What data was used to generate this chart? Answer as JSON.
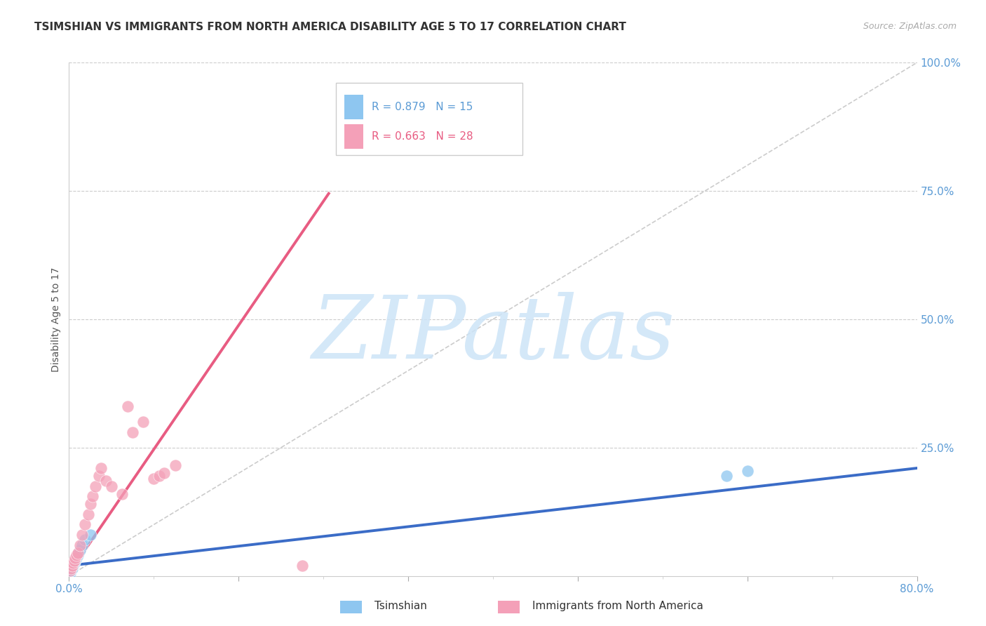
{
  "title": "TSIMSHIAN VS IMMIGRANTS FROM NORTH AMERICA DISABILITY AGE 5 TO 17 CORRELATION CHART",
  "source": "Source: ZipAtlas.com",
  "ylabel": "Disability Age 5 to 17",
  "xlim": [
    0.0,
    0.8
  ],
  "ylim": [
    0.0,
    1.0
  ],
  "blue_R": 0.879,
  "blue_N": 15,
  "pink_R": 0.663,
  "pink_N": 28,
  "tsimshian_color": "#8ec6f0",
  "immigrant_color": "#f4a0b8",
  "blue_line_color": "#3b6cc7",
  "pink_line_color": "#e85c82",
  "diag_color": "#cccccc",
  "grid_color": "#cccccc",
  "background_color": "#ffffff",
  "tick_color": "#5b9bd5",
  "tsimshian_x": [
    0.001,
    0.002,
    0.003,
    0.004,
    0.005,
    0.006,
    0.007,
    0.008,
    0.009,
    0.01,
    0.012,
    0.015,
    0.02,
    0.62,
    0.64
  ],
  "tsimshian_y": [
    0.005,
    0.01,
    0.015,
    0.02,
    0.025,
    0.03,
    0.035,
    0.04,
    0.045,
    0.05,
    0.06,
    0.07,
    0.08,
    0.195,
    0.205
  ],
  "immigrant_x": [
    0.001,
    0.002,
    0.003,
    0.004,
    0.005,
    0.006,
    0.007,
    0.008,
    0.01,
    0.012,
    0.015,
    0.018,
    0.02,
    0.022,
    0.025,
    0.028,
    0.03,
    0.035,
    0.04,
    0.05,
    0.055,
    0.06,
    0.07,
    0.08,
    0.085,
    0.09,
    0.1,
    0.22
  ],
  "immigrant_y": [
    0.01,
    0.015,
    0.02,
    0.025,
    0.03,
    0.035,
    0.04,
    0.045,
    0.06,
    0.08,
    0.1,
    0.12,
    0.14,
    0.155,
    0.175,
    0.195,
    0.21,
    0.185,
    0.175,
    0.16,
    0.33,
    0.28,
    0.3,
    0.19,
    0.195,
    0.2,
    0.215,
    0.02
  ],
  "blue_line_x": [
    0.0,
    0.8
  ],
  "blue_line_y": [
    0.02,
    0.21
  ],
  "pink_line_x": [
    0.0,
    0.245
  ],
  "pink_line_y": [
    0.005,
    0.745
  ],
  "diag_line_x": [
    0.0,
    0.8
  ],
  "diag_line_y": [
    0.0,
    1.0
  ],
  "watermark_zip_color": "#c5dff5",
  "watermark_atlas_color": "#b8d4ee",
  "title_fontsize": 11,
  "axis_label_fontsize": 10,
  "tick_fontsize": 11,
  "legend_fontsize": 11
}
